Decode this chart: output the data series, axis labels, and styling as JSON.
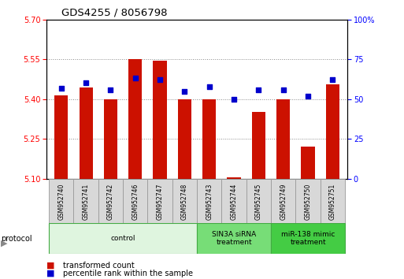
{
  "title": "GDS4255 / 8056798",
  "samples": [
    "GSM952740",
    "GSM952741",
    "GSM952742",
    "GSM952746",
    "GSM952747",
    "GSM952748",
    "GSM952743",
    "GSM952744",
    "GSM952745",
    "GSM952749",
    "GSM952750",
    "GSM952751"
  ],
  "transformed_counts": [
    5.415,
    5.445,
    5.4,
    5.55,
    5.545,
    5.4,
    5.4,
    5.105,
    5.35,
    5.4,
    5.22,
    5.455
  ],
  "percentile_ranks": [
    57,
    60,
    56,
    63,
    62,
    55,
    58,
    50,
    56,
    56,
    52,
    62
  ],
  "groups": [
    {
      "label": "control",
      "start": 0,
      "end": 6,
      "color": "#dff5df"
    },
    {
      "label": "SIN3A siRNA\ntreatment",
      "start": 6,
      "end": 9,
      "color": "#77dd77"
    },
    {
      "label": "miR-138 mimic\ntreatment",
      "start": 9,
      "end": 12,
      "color": "#44cc44"
    }
  ],
  "y_min": 5.1,
  "y_max": 5.7,
  "y_ticks": [
    5.1,
    5.25,
    5.4,
    5.55,
    5.7
  ],
  "y_right_ticks": [
    0,
    25,
    50,
    75,
    100
  ],
  "bar_color": "#cc1100",
  "dot_color": "#0000cc",
  "bar_width": 0.55,
  "grid_color": "#888888",
  "background_color": "#ffffff",
  "legend_tc": "transformed count",
  "legend_pr": "percentile rank within the sample"
}
